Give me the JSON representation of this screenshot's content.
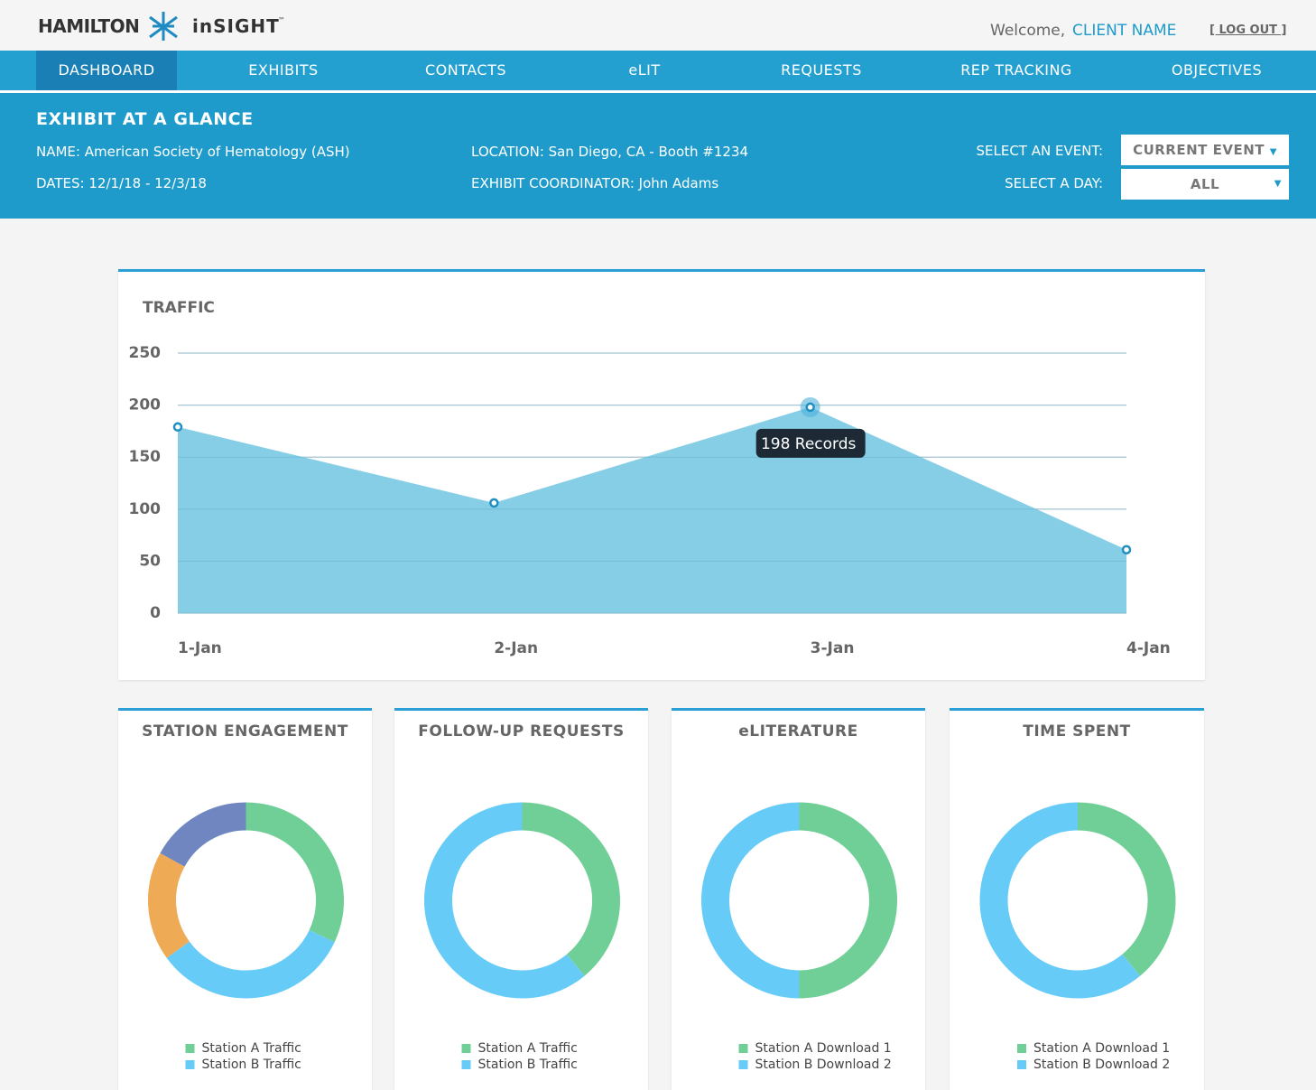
{
  "header": {
    "brand": "HAMILTON",
    "product": "inSIGHT",
    "trademark": "™",
    "welcome": "Welcome,",
    "user": "CLIENT NAME",
    "logout": "[ LOG OUT ]"
  },
  "nav": [
    "DASHBOARD",
    "EXHIBITS",
    "CONTACTS",
    "eLIT",
    "REQUESTS",
    "REP TRACKING",
    "OBJECTIVES"
  ],
  "glance": {
    "title": "EXHIBIT AT A GLANCE",
    "name": "NAME: American Society of Hematology (ASH)",
    "dates": "DATES: 12/1/18 - 12/3/18",
    "location": "LOCATION: San Diego, CA - Booth #1234",
    "coordinator": "EXHIBIT COORDINATOR: John Adams",
    "event_label": "SELECT AN EVENT:",
    "event_value": "CURRENT EVENT",
    "day_label": "SELECT A DAY:",
    "day_value": "ALL"
  },
  "chart_data": [
    {
      "type": "area",
      "title": "TRAFFIC",
      "categories": [
        "1-Jan",
        "2-Jan",
        "3-Jan",
        "4-Jan"
      ],
      "values": [
        179,
        106,
        198,
        61
      ],
      "value_labels": [
        null,
        null,
        "198 Records",
        null
      ],
      "color": "#7fcbe4",
      "ylim": [
        0,
        250
      ],
      "yticks": [
        0,
        50,
        100,
        150,
        200,
        250
      ],
      "grid": true
    },
    {
      "type": "donut",
      "title": "STATION ENGAGEMENT",
      "categories": [
        "Station A Traffic",
        "Station B Traffic",
        null,
        null
      ],
      "values": [
        32,
        33,
        18,
        17
      ],
      "colors": [
        "#70cf97",
        "#66cbf7",
        "#eeaa55",
        "#6f86c0"
      ]
    },
    {
      "type": "donut",
      "title": "FOLLOW-UP REQUESTS",
      "categories": [
        "Station A Traffic",
        "Station B Traffic"
      ],
      "values": [
        39,
        61
      ],
      "colors": [
        "#70cf97",
        "#66cbf7"
      ]
    },
    {
      "type": "donut",
      "title": "eLITERATURE",
      "categories": [
        "Station A Download 1",
        "Station B Download 2"
      ],
      "values": [
        50,
        50
      ],
      "colors": [
        "#70cf97",
        "#66cbf7"
      ]
    },
    {
      "type": "donut",
      "title": "TIME SPENT",
      "categories": [
        "Station A Download 1",
        "Station B Download 2"
      ],
      "values": [
        39,
        61
      ],
      "colors": [
        "#70cf97",
        "#66cbf7"
      ]
    }
  ]
}
